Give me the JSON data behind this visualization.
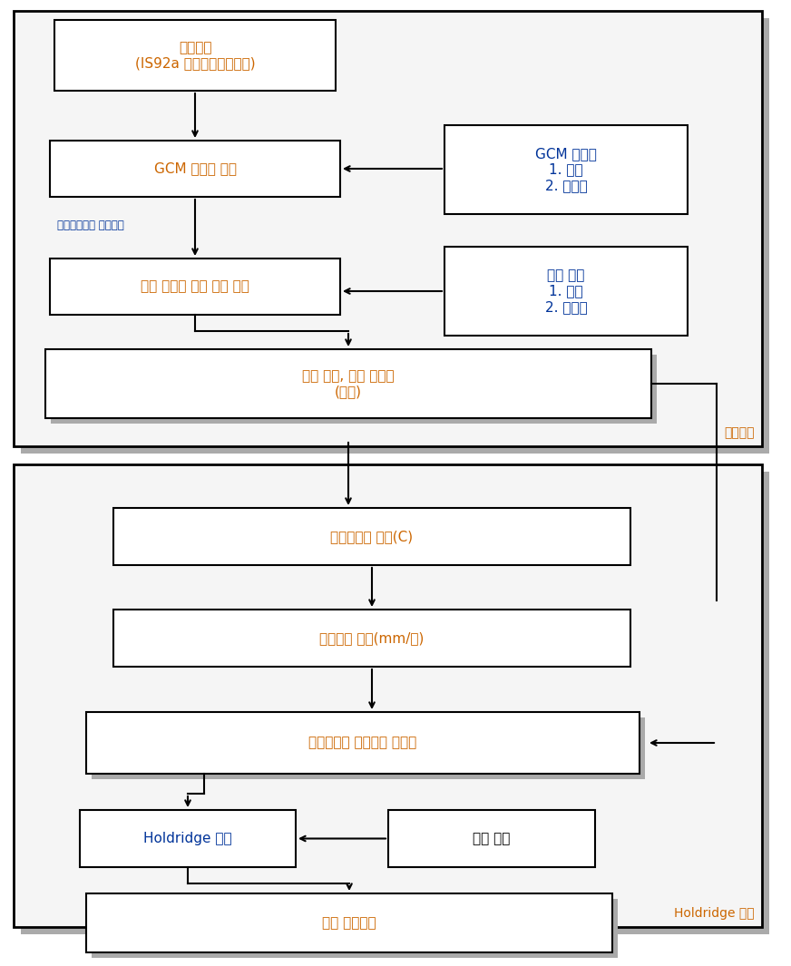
{
  "box_edge_color": "#000000",
  "box_face_color": "#ffffff",
  "shadow_color": "#aaaaaa",
  "text_color_orange": "#cc6600",
  "text_color_blue": "#003399",
  "text_color_black": "#000000",
  "bg_color": "#ffffff",
  "box1_text": "기온상승\n(IS92a 기후변화시나리오)",
  "box2_text": "GCM 결과물 조정",
  "box3_text": "다른 모듈을 위한 자료 계산",
  "box4_text": "미래 기온, 미래 강수량\n(월별)",
  "box5_text": "GCM 결과물\n1. 기온\n2. 강수량",
  "box6_text": "현재 기후\n1. 기온\n2. 강수량",
  "label_arrow12": "기후인자들의 공간분포",
  "label_climate": "기후모듈",
  "label_holdridge": "Holdridge 모듈",
  "box7_text": "생물온도의 계산(C)",
  "box8_text": "강수량의 계산(mm/연)",
  "box9_text": "생물온도와 강수량의 정규화",
  "box10_text": "Holdridge 분류",
  "box11_text": "기타 정보",
  "box12_text": "잠재 식생분류"
}
